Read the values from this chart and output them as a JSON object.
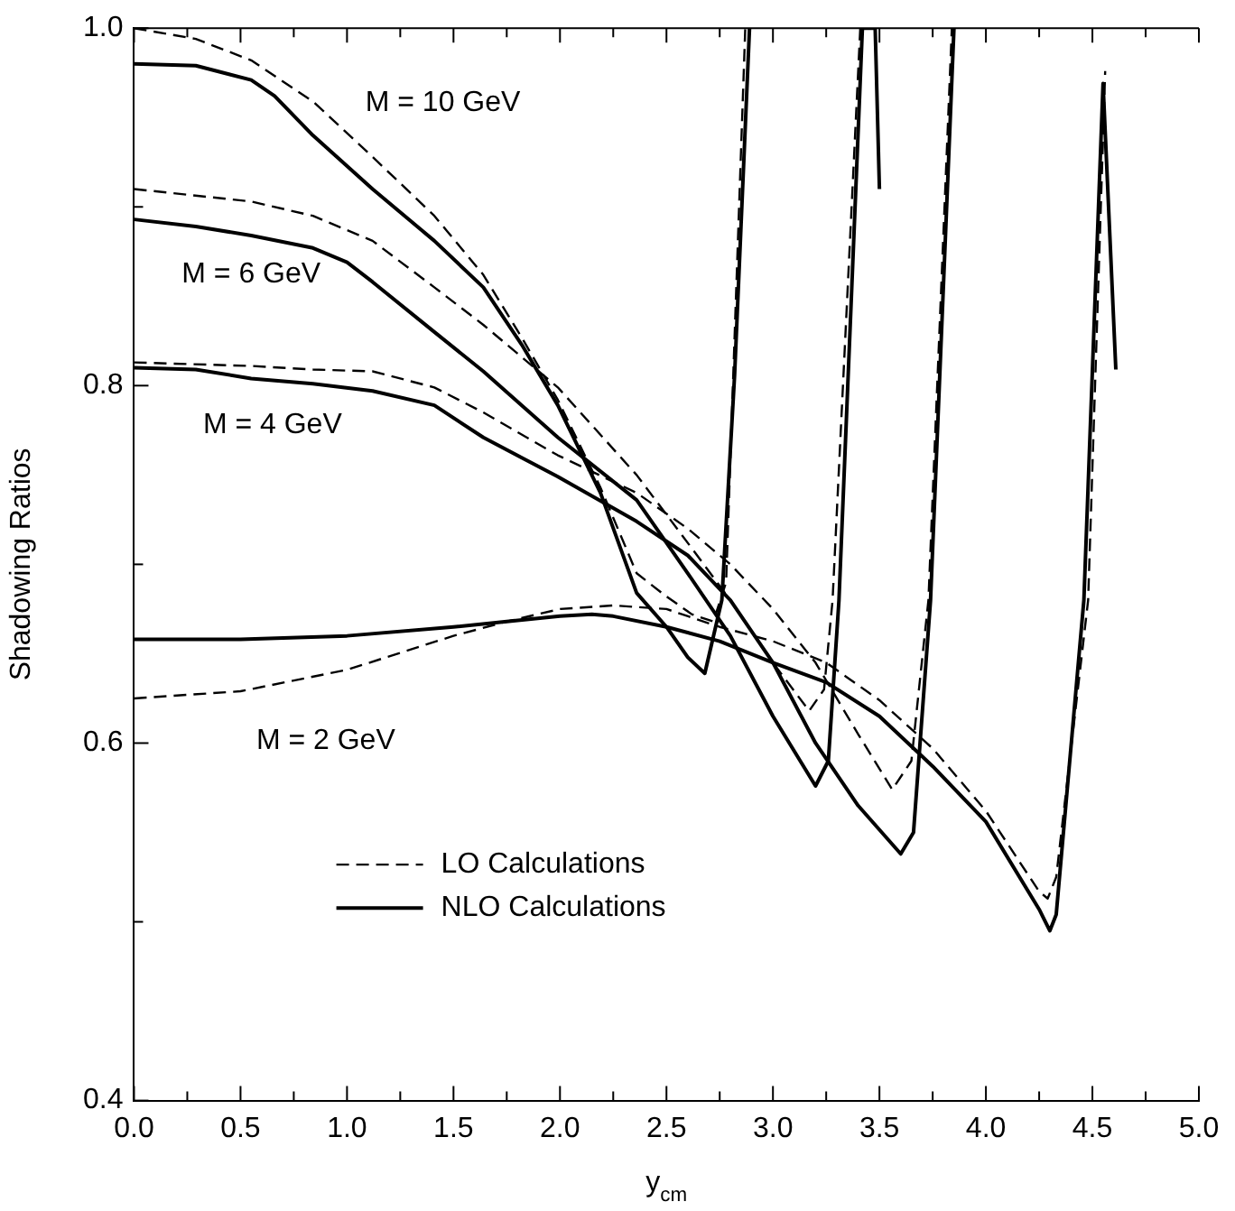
{
  "chart_data": {
    "type": "line",
    "xlabel": "y$_{cm}$",
    "ylabel": "Shadowing Ratios",
    "xlim": [
      0,
      5
    ],
    "ylim": [
      0.4,
      1.0
    ],
    "xticks": [
      {
        "value": 0,
        "label": "0.0"
      },
      {
        "value": 0.25,
        "label": null
      },
      {
        "value": 0.5,
        "label": "0.5"
      },
      {
        "value": 0.75,
        "label": null
      },
      {
        "value": 1,
        "label": "1.0"
      },
      {
        "value": 1.25,
        "label": null
      },
      {
        "value": 1.5,
        "label": "1.5"
      },
      {
        "value": 1.75,
        "label": null
      },
      {
        "value": 2,
        "label": "2.0"
      },
      {
        "value": 2.25,
        "label": null
      },
      {
        "value": 2.5,
        "label": "2.5"
      },
      {
        "value": 2.75,
        "label": null
      },
      {
        "value": 3,
        "label": "3.0"
      },
      {
        "value": 3.25,
        "label": null
      },
      {
        "value": 3.5,
        "label": "3.5"
      },
      {
        "value": 3.75,
        "label": null
      },
      {
        "value": 4,
        "label": "4.0"
      },
      {
        "value": 4.25,
        "label": null
      },
      {
        "value": 4.5,
        "label": "4.5"
      },
      {
        "value": 4.75,
        "label": null
      },
      {
        "value": 5,
        "label": "5.0"
      }
    ],
    "yticks": [
      {
        "value": 0.4,
        "label": "0.4"
      },
      {
        "value": 0.5,
        "label": null
      },
      {
        "value": 0.6,
        "label": "0.6"
      },
      {
        "value": 0.7,
        "label": null
      },
      {
        "value": 0.8,
        "label": "0.8"
      },
      {
        "value": 0.9,
        "label": null
      },
      {
        "value": 1.0,
        "label": "1.0"
      }
    ],
    "grid": false,
    "legend": "bottom left",
    "marker": "none",
    "series": [
      {
        "name": "LO Calculations",
        "color": "#000000",
        "line_style": "dashed",
        "x": [
          0,
          0.29,
          0.55,
          0.84,
          1.12,
          1.41,
          1.64,
          1.82,
          1.99,
          2.19,
          2.36,
          2.5,
          2.62,
          2.72,
          2.78,
          2.87
        ],
        "values": [
          1.0,
          0.994,
          0.982,
          0.959,
          0.928,
          0.895,
          0.862,
          0.827,
          0.792,
          0.743,
          0.695,
          0.682,
          0.672,
          0.668,
          0.69,
          1.0
        ]
      },
      {
        "name": "NLO Calculations",
        "color": "#000000",
        "line_style": "solid",
        "x": [
          0,
          0.29,
          0.55,
          0.66,
          0.84,
          1.12,
          1.41,
          1.64,
          1.82,
          1.99,
          2.19,
          2.36,
          2.5,
          2.6,
          2.68,
          2.76,
          2.82,
          2.89
        ],
        "values": [
          0.98,
          0.979,
          0.971,
          0.962,
          0.94,
          0.91,
          0.881,
          0.855,
          0.823,
          0.789,
          0.74,
          0.684,
          0.665,
          0.648,
          0.639,
          0.68,
          0.806,
          1.0
        ]
      },
      {
        "color": "#000000",
        "line_style": "dashed",
        "x": [
          0,
          0.55,
          0.84,
          1.12,
          1.41,
          1.64,
          1.99,
          2.36,
          2.6,
          2.8,
          3.0,
          3.17,
          3.24,
          3.28,
          3.41
        ],
        "values": [
          0.91,
          0.903,
          0.895,
          0.881,
          0.855,
          0.834,
          0.799,
          0.75,
          0.712,
          0.68,
          0.645,
          0.618,
          0.63,
          0.68,
          1.0
        ]
      },
      {
        "color": "#000000",
        "line_style": "solid",
        "x": [
          0,
          0.29,
          0.55,
          0.84,
          1.0,
          1.12,
          1.41,
          1.64,
          1.99,
          2.36,
          2.6,
          2.8,
          3.0,
          3.2,
          3.26,
          3.31,
          3.42,
          3.48,
          3.5
        ],
        "values": [
          0.893,
          0.889,
          0.884,
          0.877,
          0.869,
          0.858,
          0.83,
          0.808,
          0.771,
          0.736,
          0.695,
          0.66,
          0.615,
          0.576,
          0.59,
          0.68,
          1.0,
          1.0,
          0.91
        ]
      },
      {
        "color": "#000000",
        "line_style": "dashed",
        "x": [
          0,
          0.55,
          0.84,
          1.12,
          1.41,
          1.64,
          1.99,
          2.36,
          2.6,
          2.8,
          3.0,
          3.2,
          3.4,
          3.56,
          3.65,
          3.73,
          3.84
        ],
        "values": [
          0.813,
          0.811,
          0.809,
          0.808,
          0.799,
          0.785,
          0.761,
          0.74,
          0.72,
          0.7,
          0.675,
          0.645,
          0.605,
          0.574,
          0.59,
          0.68,
          1.0
        ]
      },
      {
        "color": "#000000",
        "line_style": "solid",
        "x": [
          0,
          0.29,
          0.55,
          0.84,
          1.12,
          1.41,
          1.64,
          1.99,
          2.36,
          2.6,
          2.8,
          3.0,
          3.2,
          3.4,
          3.6,
          3.66,
          3.74,
          3.85
        ],
        "values": [
          0.81,
          0.809,
          0.804,
          0.801,
          0.797,
          0.789,
          0.771,
          0.749,
          0.724,
          0.705,
          0.68,
          0.645,
          0.6,
          0.565,
          0.538,
          0.55,
          0.68,
          1.0
        ]
      },
      {
        "color": "#000000",
        "line_style": "dashed",
        "x": [
          0,
          0.5,
          1.0,
          1.5,
          1.75,
          2.0,
          2.25,
          2.5,
          2.75,
          3.0,
          3.25,
          3.5,
          3.75,
          4.0,
          4.25,
          4.29,
          4.33,
          4.48,
          4.56
        ],
        "values": [
          0.625,
          0.629,
          0.641,
          0.66,
          0.668,
          0.675,
          0.677,
          0.675,
          0.665,
          0.657,
          0.645,
          0.624,
          0.597,
          0.562,
          0.517,
          0.513,
          0.525,
          0.68,
          0.976
        ]
      },
      {
        "color": "#000000",
        "line_style": "solid",
        "x": [
          0,
          0.5,
          1.0,
          1.5,
          1.75,
          2.0,
          2.15,
          2.25,
          2.5,
          2.75,
          3.0,
          3.25,
          3.5,
          3.75,
          4.0,
          4.25,
          4.3,
          4.33,
          4.46,
          4.55,
          4.61
        ],
        "values": [
          0.658,
          0.658,
          0.66,
          0.665,
          0.668,
          0.671,
          0.672,
          0.671,
          0.665,
          0.657,
          0.645,
          0.634,
          0.615,
          0.587,
          0.556,
          0.507,
          0.495,
          0.504,
          0.68,
          0.969,
          0.809
        ]
      }
    ],
    "annotations": [
      "M = 10 GeV",
      "M = 6 GeV",
      "M = 4 GeV",
      "M = 2 GeV"
    ]
  }
}
